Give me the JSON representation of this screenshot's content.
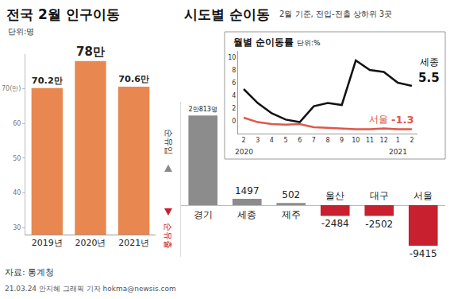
{
  "chart_data": [
    {
      "type": "bar",
      "title": "전국 2월 인구이동",
      "subtitle": "단위:명",
      "categories": [
        "2019년",
        "2020년",
        "2021년"
      ],
      "values": [
        70.2,
        78,
        70.6
      ],
      "value_labels": [
        "70.2만",
        "78만",
        "70.6만"
      ],
      "data_labels": true,
      "color": "#e8874f",
      "ylim": [
        28,
        80
      ],
      "yticks": [
        30,
        40,
        50,
        60,
        {
          "value": 70,
          "label": "70(만)"
        }
      ],
      "grid": false
    },
    {
      "type": "bar",
      "title": "시도별 순이동",
      "subtitle": "2월 기준, 전입-전출 상하위 3곳",
      "categories": [
        "경기",
        "세종",
        "제주",
        "울산",
        "대구",
        "서울"
      ],
      "values": [
        20813,
        1497,
        502,
        -2484,
        -2502,
        -9415
      ],
      "value_labels": [
        "2만813명",
        "1497",
        "502",
        "-2484",
        "-2502",
        "-9415"
      ],
      "data_labels": true,
      "colors": [
        "#8c8c8c",
        "#8c8c8c",
        "#8c8c8c",
        "#c8202f",
        "#c8202f",
        "#c8202f"
      ],
      "ylim": [
        -12000,
        24000
      ],
      "yticks": [],
      "tick_labels": false,
      "grid": false,
      "annotations": [
        "순유입",
        "순유출"
      ]
    },
    {
      "type": "line",
      "title": "월별 순이동률",
      "subtitle": "단위:%",
      "categories": [
        "2",
        "3",
        "4",
        "5",
        "6",
        "7",
        "8",
        "9",
        "10",
        "11",
        "12",
        "1",
        "2"
      ],
      "annotations": [
        {
          "text": "2020",
          "at": 0
        },
        {
          "text": "2021",
          "at": 11
        }
      ],
      "series": [
        {
          "name": "세종",
          "color": "#111111",
          "values": [
            5,
            2.8,
            1.2,
            0.2,
            -0.2,
            2.3,
            2.8,
            2.5,
            9.5,
            8,
            7.7,
            6,
            5.5
          ],
          "value_labels": [
            null,
            null,
            null,
            null,
            null,
            null,
            null,
            null,
            null,
            null,
            null,
            null,
            "5.5"
          ]
        },
        {
          "name": "서울",
          "color": "#e0574a",
          "values": [
            0.5,
            -0.2,
            -0.5,
            -0.6,
            -0.5,
            -1,
            -1.1,
            -1.2,
            -1.3,
            -1.3,
            -1.2,
            -1.3,
            -1.3
          ],
          "value_labels": [
            null,
            null,
            null,
            null,
            null,
            null,
            null,
            null,
            null,
            null,
            null,
            null,
            "-1.3"
          ]
        }
      ],
      "ylim": [
        -2,
        11
      ],
      "yticks": [
        0,
        2,
        4,
        6,
        8,
        10
      ],
      "grid": false
    }
  ],
  "source": "자료: 통계청",
  "credit": "21.03.24 안지혜 그래픽 기자 hokma@newsis.com"
}
